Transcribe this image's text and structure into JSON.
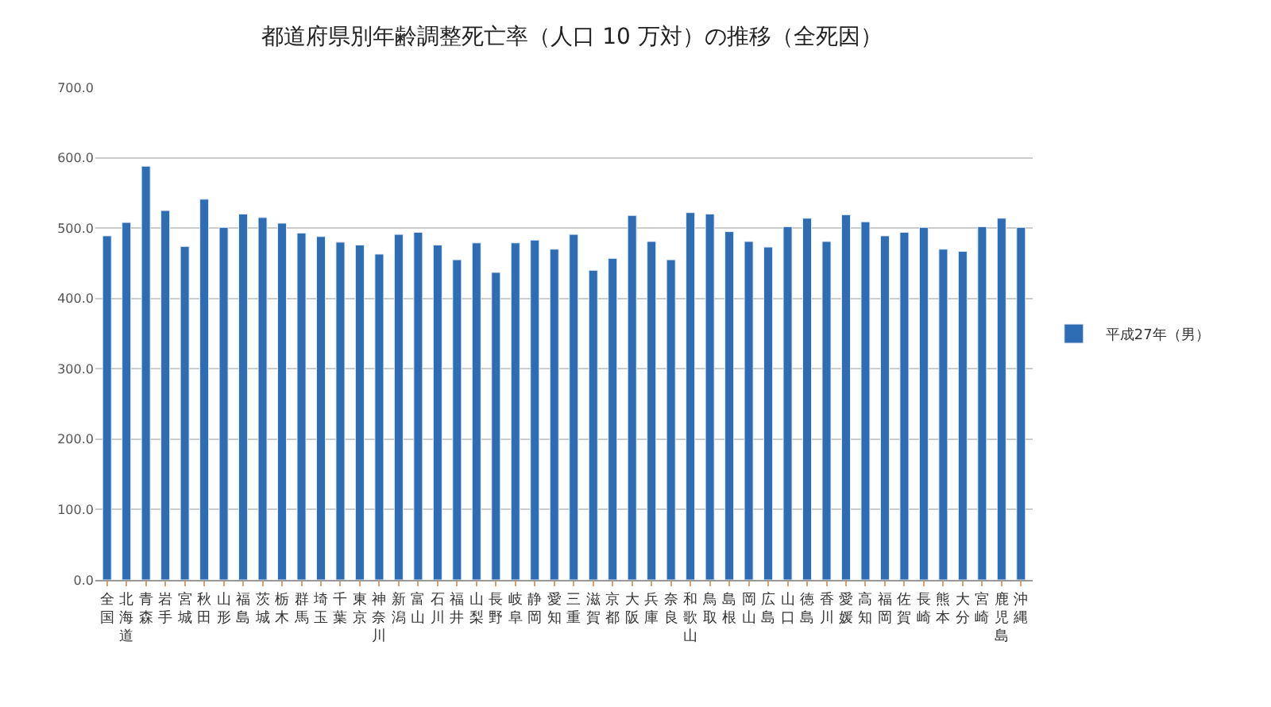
{
  "chart_data": {
    "type": "bar",
    "title": "都道府県別年齢調整死亡率（人口 10 万対）の推移（全死因）",
    "categories": [
      "全国",
      "北海道",
      "青森",
      "岩手",
      "宮城",
      "秋田",
      "山形",
      "福島",
      "茨城",
      "栃木",
      "群馬",
      "埼玉",
      "千葉",
      "東京",
      "神奈川",
      "新潟",
      "富山",
      "石川",
      "福井",
      "山梨",
      "長野",
      "岐阜",
      "静岡",
      "愛知",
      "三重",
      "滋賀",
      "京都",
      "大阪",
      "兵庫",
      "奈良",
      "和歌山",
      "鳥取",
      "島根",
      "岡山",
      "広島",
      "山口",
      "徳島",
      "香川",
      "愛媛",
      "高知",
      "福岡",
      "佐賀",
      "長崎",
      "熊本",
      "大分",
      "宮崎",
      "鹿児島",
      "沖縄"
    ],
    "series": [
      {
        "name": "平成27年（男）",
        "color": "#2e6db4",
        "values": [
          489,
          508,
          588,
          525,
          474,
          541,
          501,
          520,
          515,
          507,
          493,
          488,
          480,
          476,
          463,
          491,
          494,
          476,
          455,
          479,
          437,
          479,
          483,
          470,
          491,
          440,
          457,
          518,
          481,
          455,
          522,
          520,
          495,
          481,
          473,
          502,
          514,
          481,
          519,
          509,
          489,
          494,
          501,
          470,
          467,
          502,
          514,
          501
        ]
      }
    ],
    "ylim": [
      0,
      700
    ],
    "yticks": [
      {
        "value": 0,
        "label": "0.0"
      },
      {
        "value": 100,
        "label": "100.0"
      },
      {
        "value": 200,
        "label": "200.0"
      },
      {
        "value": 300,
        "label": "300.0"
      },
      {
        "value": 400,
        "label": "400.0"
      },
      {
        "value": 500,
        "label": "500.0"
      },
      {
        "value": 600,
        "label": "600.0"
      },
      {
        "value": 700,
        "label": "700.0"
      }
    ],
    "grid": "y",
    "legend": "right"
  }
}
